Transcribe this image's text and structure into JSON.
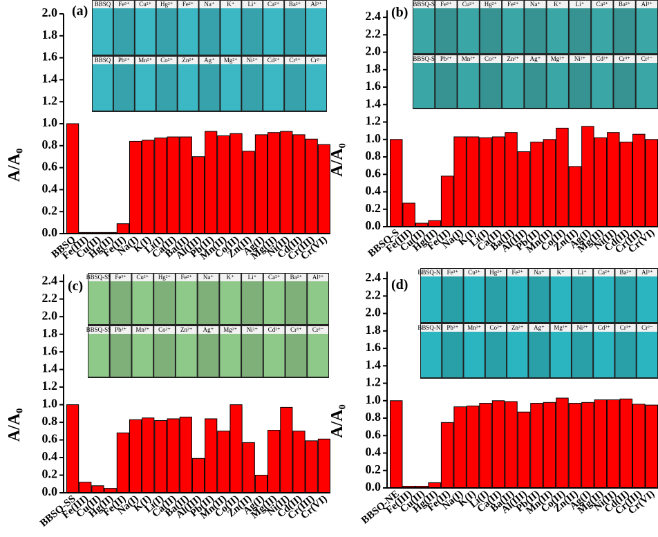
{
  "chart_data": [
    {
      "type": "bar",
      "panel_label": "(a)",
      "y_label": "A/A₀",
      "color": "#ff0000",
      "inset_color": "#3bb8c4",
      "inset_labels": [
        [
          "BBSQ",
          "Fe³⁺",
          "Cu²⁺",
          "Hg²⁺",
          "Fe²⁺",
          "Na⁺",
          "K⁺",
          "Li⁺",
          "Ca²⁺",
          "Ba²⁺",
          "Al³⁺"
        ],
        [
          "BBSQ",
          "Pb²⁺",
          "Mn²⁺",
          "Co²⁺",
          "Zn²⁺",
          "Ag⁺",
          "Mg²⁺",
          "Ni²⁺",
          "Cd²⁺",
          "Cr³⁺",
          "Cr²⁻"
        ]
      ],
      "categories": [
        "BBSQ",
        "Fe(III)",
        "Cu(II)",
        "Hg(II)",
        "Fe(II)",
        "Na(I)",
        "K(I)",
        "Li(I)",
        "Ca(II)",
        "Ba(II)",
        "Al(III)",
        "Pb(II)",
        "Mn(II)",
        "Co(II)",
        "Zn(II)",
        "Ag(I)",
        "Mg(II)",
        "Ni(II)",
        "Cd(II)",
        "Cr(III)",
        "Cr(VI)"
      ],
      "values": [
        1.0,
        0.01,
        0.01,
        0.01,
        0.09,
        0.84,
        0.85,
        0.87,
        0.88,
        0.88,
        0.7,
        0.93,
        0.89,
        0.91,
        0.75,
        0.9,
        0.92,
        0.93,
        0.9,
        0.86,
        0.81
      ],
      "ylim": [
        0,
        2.0
      ],
      "yticks": [
        {
          "value": 0,
          "label": "0.0"
        },
        0.2,
        0.4,
        0.6,
        0.8,
        {
          "value": 1,
          "label": "1.0"
        },
        1.2,
        1.4,
        1.6,
        1.8,
        {
          "value": 2,
          "label": "2.0"
        }
      ]
    },
    {
      "type": "bar",
      "panel_label": "(b)",
      "y_label": "A/A₀",
      "color": "#ff0000",
      "inset_color": "#3aa7a6",
      "inset_labels": [
        [
          "BBSQ-S",
          "Fe³⁺",
          "Cu²⁺",
          "Hg²⁺",
          "Fe²⁺",
          "Na⁺",
          "K⁺",
          "Li⁺",
          "Ca²⁺",
          "Ba²⁺",
          "Al³⁺"
        ],
        [
          "BBSQ-S",
          "Pb²⁺",
          "Mn²⁺",
          "Co²⁺",
          "Zn²⁺",
          "Ag⁺",
          "Mg²⁺",
          "Ni²⁺",
          "Cd²⁺",
          "Cr³⁺",
          "Cr²⁻"
        ]
      ],
      "categories": [
        "BBSQ-S",
        "Fe(III)",
        "Cu(II)",
        "Hg(II)",
        "Fe(II)",
        "Na(I)",
        "K(I)",
        "Li(I)",
        "Ca(II)",
        "Ba(II)",
        "Al(III)",
        "Pb(II)",
        "Mn(II)",
        "Co(II)",
        "Zn(II)",
        "Ag(I)",
        "Mg(II)",
        "Ni(II)",
        "Cd(II)",
        "Cr(III)",
        "Cr(VI)"
      ],
      "values": [
        1.0,
        0.27,
        0.04,
        0.07,
        0.58,
        1.03,
        1.03,
        1.02,
        1.03,
        1.08,
        0.86,
        0.97,
        1.0,
        1.13,
        0.69,
        1.15,
        1.02,
        1.08,
        0.97,
        1.06,
        1.0
      ],
      "ylim": [
        0,
        2.48
      ],
      "yticks": [
        {
          "value": 0,
          "label": "0.0"
        },
        0.2,
        0.4,
        0.6,
        0.8,
        {
          "value": 1,
          "label": "1.0"
        },
        1.2,
        1.4,
        1.6,
        1.8,
        {
          "value": 2,
          "label": "2.0"
        },
        2.2,
        2.4
      ]
    },
    {
      "type": "bar",
      "panel_label": "(c)",
      "y_label": "A/A₀",
      "color": "#ff0000",
      "inset_color": "#8fc98a",
      "inset_labels": [
        [
          "BBSQ-SS",
          "Fe³⁺",
          "Cu²⁺",
          "Hg²⁺",
          "Fe²⁺",
          "Na⁺",
          "K⁺",
          "Li⁺",
          "Ca²⁺",
          "Ba²⁺",
          "Al³⁺"
        ],
        [
          "BBSQ-SS",
          "Pb²⁺",
          "Mn²⁺",
          "Co²⁺",
          "Zn²⁺",
          "Ag⁺",
          "Mg²⁺",
          "Ni²⁺",
          "Cd²⁺",
          "Cr³⁺",
          "Cr²⁻"
        ]
      ],
      "categories": [
        "BBSQ-SS",
        "Fe(III)",
        "Cu(II)",
        "Hg(II)",
        "Fe(II)",
        "Na(I)",
        "K(I)",
        "Li(I)",
        "Ca(II)",
        "Ba(II)",
        "Al(III)",
        "Pb(II)",
        "Mn(II)",
        "Co(II)",
        "Zn(II)",
        "Ag(I)",
        "Mg(II)",
        "Ni(II)",
        "Cd(II)",
        "Cr(III)",
        "Cr(VI)"
      ],
      "values": [
        1.0,
        0.12,
        0.08,
        0.05,
        0.68,
        0.83,
        0.85,
        0.82,
        0.84,
        0.86,
        0.39,
        0.84,
        0.7,
        1.0,
        0.57,
        0.2,
        0.71,
        0.97,
        0.7,
        0.59,
        0.61
      ],
      "ylim": [
        0,
        2.48
      ],
      "yticks": [
        {
          "value": 0,
          "label": "0.0"
        },
        0.2,
        0.4,
        0.6,
        0.8,
        {
          "value": 1,
          "label": "1.0"
        },
        1.2,
        1.4,
        1.6,
        1.8,
        {
          "value": 2,
          "label": "2.0"
        },
        2.2,
        2.4
      ]
    },
    {
      "type": "bar",
      "panel_label": "(d)",
      "y_label": "A/A₀",
      "color": "#ff0000",
      "inset_color": "#2ab5c0",
      "inset_labels": [
        [
          "BBSQ-NE",
          "Fe³⁺",
          "Cu²⁺",
          "Hg²⁺",
          "Fe²⁺",
          "Na⁺",
          "K⁺",
          "Li⁺",
          "Ca²⁺",
          "Ba²⁺",
          "Al³⁺"
        ],
        [
          "BBSQ-NE",
          "Pb²⁺",
          "Mn²⁺",
          "Co²⁺",
          "Zn²⁺",
          "Ag⁺",
          "Mg²⁺",
          "Ni²⁺",
          "Cd²⁺",
          "Cr³⁺",
          "Cr²⁻"
        ]
      ],
      "categories": [
        "BBSQ-NE",
        "Fe(III)",
        "Cu(II)",
        "Hg(II)",
        "Fe(II)",
        "Na(I)",
        "K(I)",
        "Li(I)",
        "Ca(II)",
        "Ba(II)",
        "Al(III)",
        "Pb(II)",
        "Mn(II)",
        "Co(II)",
        "Zn(II)",
        "Ag(I)",
        "Mg(II)",
        "Ni(II)",
        "Cd(II)",
        "Cr(III)",
        "Cr(VI)"
      ],
      "values": [
        1.0,
        0.02,
        0.02,
        0.06,
        0.75,
        0.93,
        0.94,
        0.97,
        1.0,
        0.99,
        0.87,
        0.97,
        0.98,
        1.03,
        0.97,
        0.98,
        1.01,
        1.01,
        1.02,
        0.96,
        0.95
      ],
      "ylim": [
        0,
        2.48
      ],
      "yticks": [
        {
          "value": 0,
          "label": "0.0"
        },
        0.2,
        0.4,
        0.6,
        0.8,
        {
          "value": 1,
          "label": "1.0"
        },
        1.2,
        1.4,
        1.6,
        1.8,
        {
          "value": 2,
          "label": "2.0"
        },
        2.2,
        2.4
      ]
    }
  ]
}
